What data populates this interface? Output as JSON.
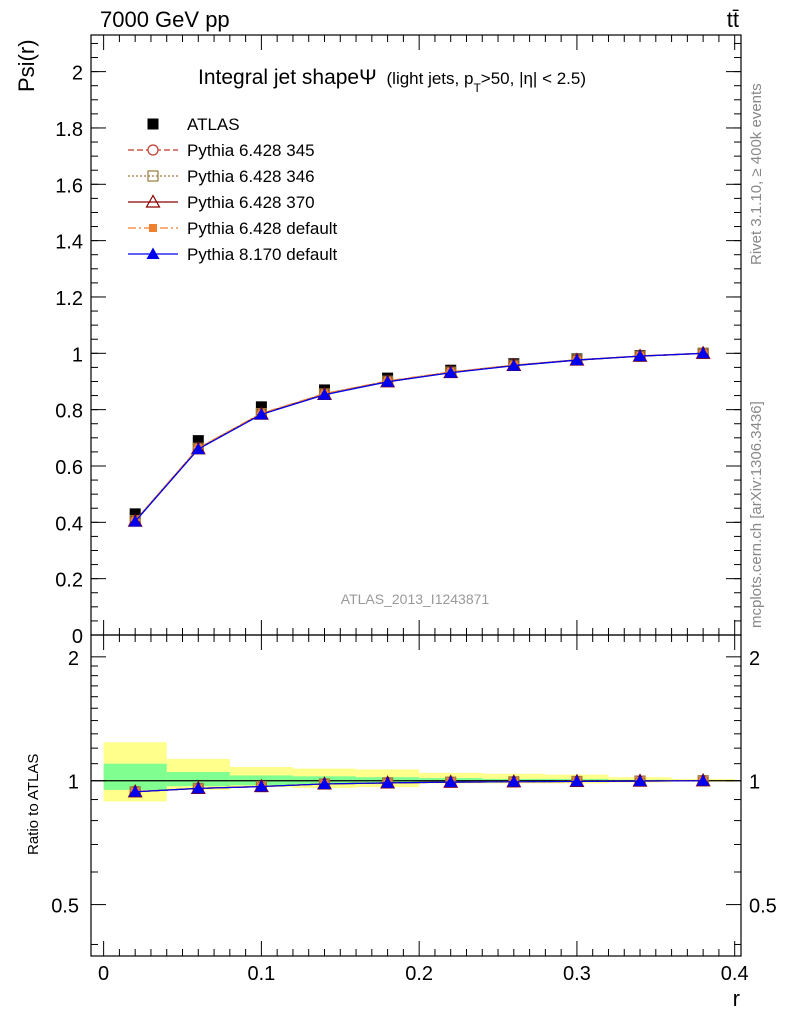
{
  "header": {
    "left": "7000 GeV pp",
    "right": "tt̄",
    "side_top": "Rivet 3.1.10, ≥ 400k events",
    "side_bottom": "mcplots.cern.ch [arXiv:1306.3436]",
    "watermark": "ATLAS_2013_I1243871"
  },
  "title": {
    "main": "Integral jet shapeΨ",
    "sub": "(light jets, p",
    "sub_sub": "T",
    "sub_rest": ">50, |η| < 2.5)"
  },
  "chart_data": {
    "type": "line",
    "x": [
      0.02,
      0.06,
      0.1,
      0.14,
      0.18,
      0.22,
      0.26,
      0.3,
      0.34,
      0.38
    ],
    "xlabel": "r",
    "ylabel": "Psi(r)",
    "ratio_ylabel": "Ratio to ATLAS",
    "xlim": [
      -0.008,
      0.404
    ],
    "ylim": [
      0,
      2.13
    ],
    "ratio_ylim": [
      0.375,
      2.26
    ],
    "xticks": [
      "0",
      "0.1",
      "0.2",
      "0.3",
      "0.4"
    ],
    "yticks": [
      "0",
      "0.2",
      "0.4",
      "0.6",
      "0.8",
      "1",
      "1.2",
      "1.4",
      "1.6",
      "1.8",
      "2"
    ],
    "ratio_yticks": [
      "0.5",
      "1",
      "2"
    ],
    "legend_position": "top-left",
    "data": {
      "name": "ATLAS",
      "values": [
        0.43,
        0.69,
        0.81,
        0.87,
        0.912,
        0.94,
        0.963,
        0.98,
        0.992,
        1.0
      ]
    },
    "series": [
      {
        "name": "Pythia 6.428 345",
        "color": "#c0392b",
        "marker": "circle-open",
        "dash": "6,3",
        "values": [
          0.405,
          0.662,
          0.785,
          0.855,
          0.9,
          0.932,
          0.957,
          0.976,
          0.99,
          1.0
        ]
      },
      {
        "name": "Pythia 6.428 346",
        "color": "#9c7a3c",
        "marker": "square-open",
        "dash": "2,2",
        "values": [
          0.406,
          0.663,
          0.786,
          0.856,
          0.901,
          0.933,
          0.958,
          0.977,
          0.99,
          1.0
        ]
      },
      {
        "name": "Pythia 6.428 370",
        "color": "#8b0000",
        "marker": "triangle-open",
        "dash": "",
        "values": [
          0.404,
          0.661,
          0.784,
          0.854,
          0.899,
          0.932,
          0.957,
          0.976,
          0.99,
          1.0
        ]
      },
      {
        "name": "Pythia 6.428 default",
        "color": "#f07f2e",
        "marker": "square-filled",
        "dash": "8,3,2,3",
        "values": [
          0.406,
          0.664,
          0.787,
          0.857,
          0.902,
          0.934,
          0.958,
          0.977,
          0.991,
          1.0
        ]
      },
      {
        "name": "Pythia 8.170 default",
        "color": "#0000ee",
        "marker": "triangle-filled",
        "dash": "",
        "values": [
          0.403,
          0.66,
          0.783,
          0.853,
          0.899,
          0.931,
          0.956,
          0.976,
          0.99,
          1.0
        ]
      }
    ],
    "ratio": {
      "bins": [
        [
          0.0,
          0.04
        ],
        [
          0.04,
          0.08
        ],
        [
          0.08,
          0.12
        ],
        [
          0.12,
          0.16
        ],
        [
          0.16,
          0.2
        ],
        [
          0.2,
          0.24
        ],
        [
          0.24,
          0.28
        ],
        [
          0.28,
          0.32
        ],
        [
          0.32,
          0.36
        ],
        [
          0.36,
          0.4
        ]
      ],
      "stat_band": [
        [
          0.95,
          1.1
        ],
        [
          0.97,
          1.05
        ],
        [
          0.975,
          1.03
        ],
        [
          0.98,
          1.025
        ],
        [
          0.985,
          1.02
        ],
        [
          0.99,
          1.015
        ],
        [
          0.99,
          1.01
        ],
        [
          0.995,
          1.01
        ],
        [
          0.997,
          1.005
        ],
        [
          0.999,
          1.002
        ]
      ],
      "total_band": [
        [
          0.89,
          1.24
        ],
        [
          0.95,
          1.13
        ],
        [
          0.965,
          1.08
        ],
        [
          0.96,
          1.07
        ],
        [
          0.965,
          1.065
        ],
        [
          0.985,
          1.045
        ],
        [
          0.985,
          1.04
        ],
        [
          0.985,
          1.035
        ],
        [
          0.99,
          1.02
        ],
        [
          0.995,
          1.01
        ]
      ],
      "mc_values": [
        0.94,
        0.958,
        0.968,
        0.982,
        0.988,
        0.992,
        0.994,
        0.996,
        0.998,
        1.0
      ]
    },
    "band_colors": {
      "stat": "#80ff90",
      "total": "#ffff8c"
    }
  }
}
